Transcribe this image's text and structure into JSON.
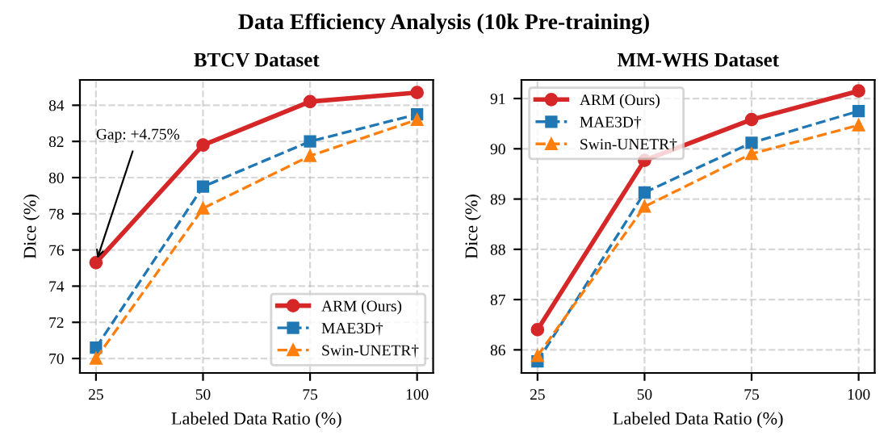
{
  "chart_data": [
    {
      "type": "line",
      "title": "BTCV Dataset",
      "xlabel": "Labeled Data Ratio (%)",
      "ylabel": "Dice (%)",
      "x": [
        25,
        50,
        75,
        100
      ],
      "series": [
        {
          "name": "ARM (Ours)",
          "color": "#d62728",
          "values": [
            75.3,
            81.8,
            84.2,
            84.7
          ],
          "marker": "circle",
          "line_style": "solid"
        },
        {
          "name": "MAE3D†",
          "color": "#1f77b4",
          "values": [
            70.6,
            79.5,
            82.0,
            83.5
          ],
          "marker": "square",
          "line_style": "dashed"
        },
        {
          "name": "Swin-UNETR†",
          "color": "#ff7f0e",
          "values": [
            70.0,
            78.3,
            81.2,
            83.2
          ],
          "marker": "triangle",
          "line_style": "dashed"
        }
      ],
      "xlim": [
        21.25,
        103.75
      ],
      "xticks": [
        25,
        50,
        75,
        100
      ],
      "ylim": [
        69.2,
        85.4
      ],
      "yticks": [
        70,
        72,
        74,
        76,
        78,
        80,
        82,
        84
      ],
      "annotations": [
        "Data Efficiency Analysis (10k Pre-training)",
        {
          "text": "Gap: +4.75%",
          "x": 25,
          "y": 75.3
        }
      ],
      "grid": true,
      "legend": "bottom right"
    },
    {
      "type": "line",
      "title": "MM-WHS Dataset",
      "xlabel": "Labeled Data Ratio (%)",
      "ylabel": "Dice (%)",
      "x": [
        25,
        50,
        75,
        100
      ],
      "series": [
        {
          "name": "ARM (Ours)",
          "color": "#d62728",
          "values": [
            86.4,
            89.77,
            90.58,
            91.15
          ],
          "marker": "circle",
          "line_style": "solid"
        },
        {
          "name": "MAE3D†",
          "color": "#1f77b4",
          "values": [
            85.77,
            89.13,
            90.12,
            90.75
          ],
          "marker": "square",
          "line_style": "dashed"
        },
        {
          "name": "Swin-UNETR†",
          "color": "#ff7f0e",
          "values": [
            85.88,
            88.85,
            89.9,
            90.47
          ],
          "marker": "triangle",
          "line_style": "dashed"
        }
      ],
      "xlim": [
        21.25,
        103.75
      ],
      "xticks": [
        25,
        50,
        75,
        100
      ],
      "ylim": [
        85.54,
        91.37
      ],
      "yticks": [
        86,
        87,
        88,
        89,
        90,
        91
      ],
      "grid": true,
      "legend": "top left"
    }
  ]
}
